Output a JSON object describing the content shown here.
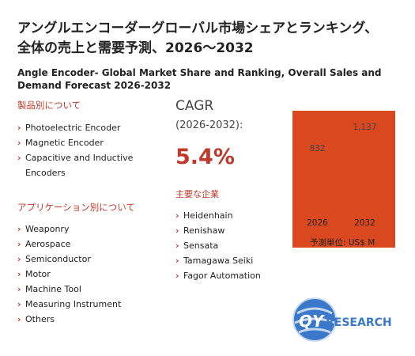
{
  "header": {
    "title": "アングルエンコーダーグローバル市場シェアとランキング、全体の売上と需要予測、2026～2032",
    "subtitle": "Angle Encoder- Global Market Share and Ranking, Overall Sales and Demand Forecast 2026-2032"
  },
  "products": {
    "heading": "製品別について",
    "items": [
      "Photoelectric Encoder",
      "Magnetic Encoder",
      "Capacitive and Inductive Encoders"
    ]
  },
  "applications": {
    "heading": "アプリケーション別について",
    "items": [
      "Weaponry",
      "Aerospace",
      "Semiconductor",
      "Motor",
      "Machine Tool",
      "Measuring Instrument",
      "Others"
    ]
  },
  "cagr": {
    "label": "CAGR",
    "period": "(2026-2032):",
    "value": "5.4%"
  },
  "players": {
    "heading": "主要な企業",
    "items": [
      "Heidenhain",
      "Renishaw",
      "Sensata",
      "Tamagawa Seiki",
      "Fagor Automation"
    ]
  },
  "chart_data": {
    "type": "bar",
    "categories": [
      "2026",
      "2032"
    ],
    "values": [
      832,
      1137
    ],
    "value_labels": [
      "832",
      "1,137"
    ],
    "color": "#d9481f",
    "unit": "予測単位: US$ M"
  },
  "logo": {
    "mark": "QY",
    "text": "RESEARCH"
  }
}
